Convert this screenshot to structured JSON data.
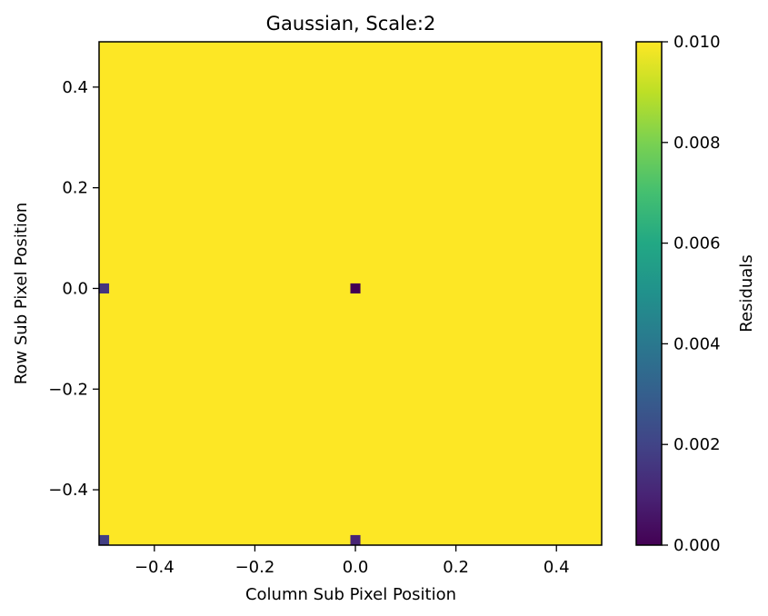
{
  "chart_data": {
    "type": "heatmap",
    "title": "Gaussian, Scale:2",
    "xlabel": "Column Sub Pixel Position",
    "ylabel": "Row Sub Pixel Position",
    "xlim": [
      -0.51,
      0.49
    ],
    "ylim": [
      -0.51,
      0.49
    ],
    "x_ticks": [
      -0.4,
      -0.2,
      0.0,
      0.2,
      0.4
    ],
    "x_tick_labels": [
      "−0.4",
      "−0.2",
      "0.0",
      "0.2",
      "0.4"
    ],
    "y_ticks": [
      -0.4,
      -0.2,
      0.0,
      0.2,
      0.4
    ],
    "y_tick_labels": [
      "−0.4",
      "−0.2",
      "0.0",
      "0.2",
      "0.4"
    ],
    "grid_step": 0.02,
    "background_value": 0.01,
    "cells": [
      {
        "x": -0.5,
        "y": 0.0,
        "value": 0.0015
      },
      {
        "x": 0.0,
        "y": 0.0,
        "value": 0.0
      },
      {
        "x": -0.5,
        "y": -0.5,
        "value": 0.0018
      },
      {
        "x": 0.0,
        "y": -0.5,
        "value": 0.001
      }
    ],
    "colormap": "viridis",
    "colorbar": {
      "label": "Residuals",
      "range": [
        0.0,
        0.01
      ],
      "ticks": [
        0.0,
        0.002,
        0.004,
        0.006,
        0.008,
        0.01
      ],
      "tick_labels": [
        "0.000",
        "0.002",
        "0.004",
        "0.006",
        "0.008",
        "0.010"
      ]
    },
    "grid": false,
    "legend": "none"
  }
}
